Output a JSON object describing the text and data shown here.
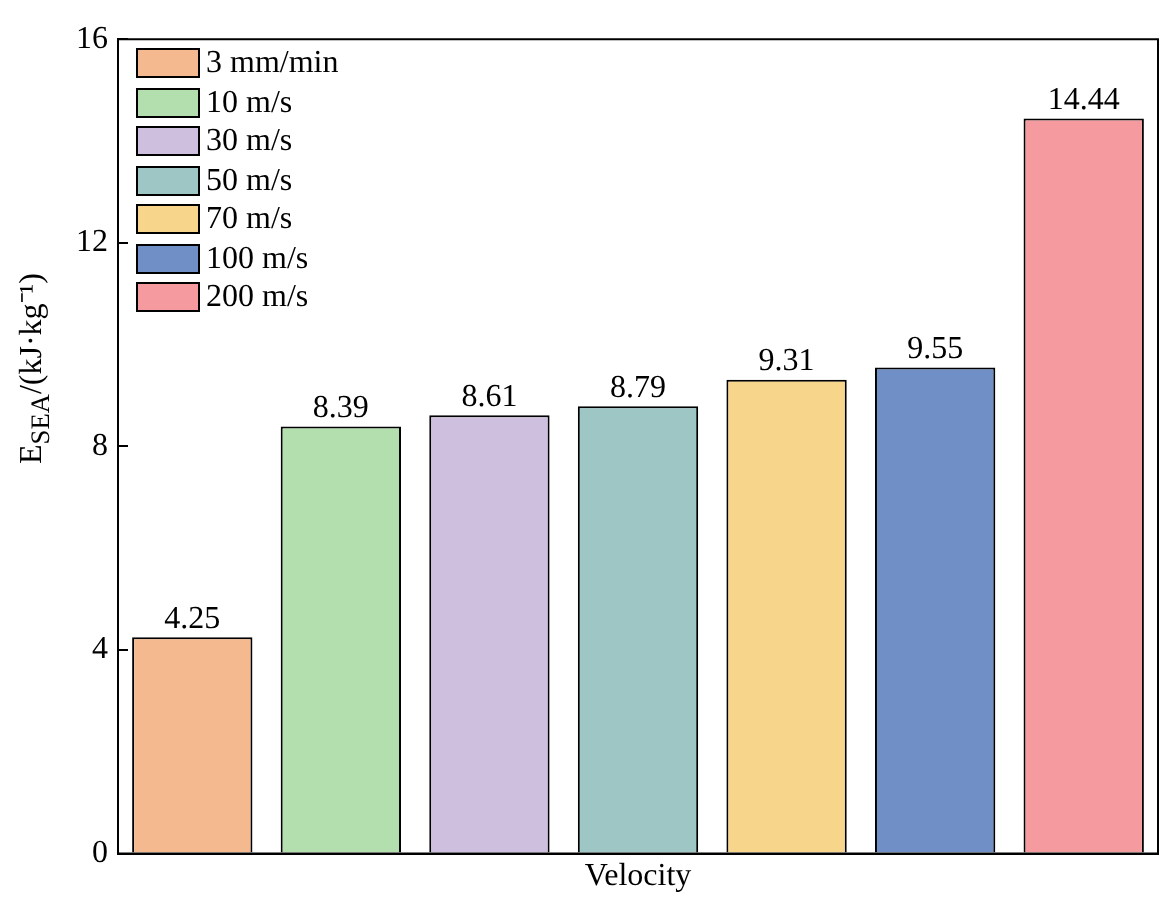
{
  "chart_data": {
    "type": "bar",
    "xlabel": "Velocity",
    "ylabel": "E$_{SEA}$/(kJ·kg⁻¹)",
    "categories": [
      null,
      null,
      null,
      null,
      null,
      null,
      null
    ],
    "series": [
      {
        "name": "3 mm/min",
        "color": "#f5b98f",
        "values": [
          4.25,
          null,
          null,
          null,
          null,
          null,
          null
        ]
      },
      {
        "name": "10 m/s",
        "color": "#b3dfae",
        "values": [
          null,
          8.39,
          null,
          null,
          null,
          null,
          null
        ]
      },
      {
        "name": "30 m/s",
        "color": "#cdbfdd",
        "values": [
          null,
          null,
          8.61,
          null,
          null,
          null,
          null
        ]
      },
      {
        "name": "50 m/s",
        "color": "#9ec6c4",
        "values": [
          null,
          null,
          null,
          8.79,
          null,
          null,
          null
        ]
      },
      {
        "name": "70 m/s",
        "color": "#f7d68c",
        "values": [
          null,
          null,
          null,
          null,
          9.31,
          null,
          null
        ]
      },
      {
        "name": "100 m/s",
        "color": "#6f8fc6",
        "values": [
          null,
          null,
          null,
          null,
          null,
          9.55,
          null
        ]
      },
      {
        "name": "200 m/s",
        "color": "#f59a9e",
        "values": [
          null,
          null,
          null,
          null,
          null,
          null,
          14.44
        ]
      }
    ],
    "ylim": [
      0,
      16
    ],
    "yticks": [
      0,
      4,
      8,
      12,
      16
    ],
    "grid": false,
    "legend": "top left",
    "data_labels": true
  }
}
